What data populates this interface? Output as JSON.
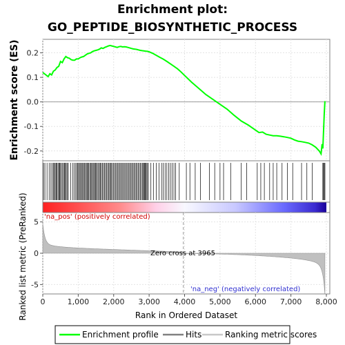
{
  "chart_data": {
    "type": "line",
    "title_line1": "Enrichment plot:",
    "title_line2": "GO_PEPTIDE_BIOSYNTHETIC_PROCESS",
    "top_panel": {
      "ylabel": "Enrichment score (ES)",
      "ylim": [
        -0.24,
        0.255
      ],
      "yticks": [
        -0.2,
        -0.1,
        0.0,
        0.1,
        0.2
      ],
      "ytick_labels": [
        "-0.2",
        "-0.1",
        "0.0",
        "0.1",
        "0.2"
      ],
      "series": [
        {
          "name": "Enrichment profile",
          "color": "#00ff00",
          "x": [
            0,
            150,
            200,
            250,
            300,
            350,
            400,
            450,
            500,
            550,
            600,
            650,
            700,
            750,
            800,
            850,
            900,
            950,
            1000,
            1050,
            1100,
            1150,
            1200,
            1250,
            1300,
            1350,
            1400,
            1450,
            1500,
            1550,
            1600,
            1650,
            1700,
            1750,
            1800,
            1850,
            1900,
            1950,
            2000,
            2050,
            2100,
            2150,
            2200,
            2250,
            2300,
            2350,
            2400,
            2450,
            2500,
            2550,
            2600,
            2650,
            2700,
            2750,
            2800,
            2850,
            2900,
            2950,
            3000,
            3100,
            3200,
            3300,
            3400,
            3500,
            3600,
            3700,
            3800,
            3900,
            4000,
            4200,
            4400,
            4600,
            4800,
            5000,
            5200,
            5400,
            5600,
            5800,
            6000,
            6100,
            6200,
            6300,
            6400,
            6500,
            6600,
            6700,
            6800,
            6900,
            7000,
            7100,
            7200,
            7300,
            7400,
            7500,
            7600,
            7700,
            7800,
            7850,
            7880,
            7900,
            7920,
            7940,
            7960
          ],
          "y": [
            0.12,
            0.103,
            0.115,
            0.11,
            0.125,
            0.13,
            0.14,
            0.145,
            0.165,
            0.16,
            0.175,
            0.185,
            0.18,
            0.178,
            0.172,
            0.17,
            0.17,
            0.175,
            0.175,
            0.18,
            0.183,
            0.185,
            0.19,
            0.195,
            0.198,
            0.2,
            0.205,
            0.208,
            0.21,
            0.212,
            0.215,
            0.22,
            0.218,
            0.222,
            0.225,
            0.228,
            0.23,
            0.228,
            0.226,
            0.224,
            0.222,
            0.225,
            0.226,
            0.224,
            0.225,
            0.224,
            0.222,
            0.22,
            0.218,
            0.216,
            0.215,
            0.214,
            0.212,
            0.21,
            0.209,
            0.208,
            0.207,
            0.206,
            0.204,
            0.198,
            0.19,
            0.182,
            0.174,
            0.165,
            0.155,
            0.145,
            0.135,
            0.122,
            0.108,
            0.08,
            0.055,
            0.03,
            0.01,
            -0.01,
            -0.03,
            -0.055,
            -0.078,
            -0.095,
            -0.115,
            -0.125,
            -0.123,
            -0.132,
            -0.135,
            -0.138,
            -0.138,
            -0.14,
            -0.142,
            -0.145,
            -0.148,
            -0.155,
            -0.16,
            -0.162,
            -0.165,
            -0.168,
            -0.175,
            -0.185,
            -0.2,
            -0.212,
            -0.172,
            -0.19,
            -0.12,
            -0.05,
            0.003
          ]
        }
      ],
      "zero_line": 0.0
    },
    "hits_panel": {
      "hit_positions": [
        20,
        60,
        120,
        180,
        230,
        270,
        300,
        330,
        350,
        380,
        400,
        430,
        460,
        480,
        500,
        530,
        560,
        590,
        610,
        640,
        660,
        690,
        720,
        790,
        850,
        890,
        930,
        960,
        990,
        1010,
        1040,
        1070,
        1090,
        1120,
        1150,
        1170,
        1200,
        1230,
        1250,
        1280,
        1300,
        1330,
        1360,
        1380,
        1410,
        1440,
        1460,
        1490,
        1510,
        1540,
        1570,
        1600,
        1620,
        1650,
        1680,
        1710,
        1740,
        1770,
        1800,
        1830,
        1860,
        1890,
        1910,
        1940,
        1970,
        2000,
        2030,
        2060,
        2090,
        2120,
        2150,
        2180,
        2210,
        2240,
        2270,
        2300,
        2330,
        2360,
        2390,
        2420,
        2450,
        2480,
        2510,
        2540,
        2570,
        2600,
        2630,
        2660,
        2690,
        2720,
        2750,
        2780,
        2810,
        2840,
        2860,
        2880,
        2900,
        2920,
        2950,
        2980,
        3050,
        3120,
        3200,
        3280,
        3350,
        3400,
        3450,
        3500,
        3550,
        3600,
        3650,
        3700,
        3750,
        3850,
        4050,
        4150,
        4300,
        4450,
        4700,
        4850,
        5000,
        5100,
        5300,
        5600,
        5750,
        6050,
        6150,
        6250,
        6400,
        6500,
        6600,
        6750,
        6900,
        7050,
        7300,
        7450,
        7600,
        7900,
        7920,
        7940,
        7960
      ]
    },
    "rank_bar": {
      "pos_label": "'na_pos' (positively correlated)",
      "neg_label": "'na_neg' (negatively correlated)",
      "pos_color": "#ff0000",
      "neg_color": "#0000ff"
    },
    "metric_panel": {
      "ylabel": "Ranked list metric (PreRanked)",
      "ylim": [
        -6.5,
        6.5
      ],
      "yticks": [
        -5,
        0,
        5
      ],
      "ytick_labels": [
        "-5",
        "0",
        "5"
      ],
      "zero_cross_label": "Zero cross at 3965",
      "zero_cross": 3965
    },
    "xaxis": {
      "xlabel": "Rank in Ordered Dataset",
      "xlim": [
        0,
        8000
      ],
      "xticks": [
        0,
        1000,
        2000,
        3000,
        4000,
        5000,
        6000,
        7000,
        8000
      ],
      "xtick_labels": [
        "0",
        "1,000",
        "2,000",
        "3,000",
        "4,000",
        "5,000",
        "6,000",
        "7,000",
        "8,000"
      ],
      "n_ranks": 7960
    },
    "legend": {
      "items": [
        {
          "label": "Enrichment profile",
          "color": "#00ff00"
        },
        {
          "label": "Hits",
          "color": "#000000"
        },
        {
          "label": "Ranking metric scores",
          "color": "#c0c0c0"
        }
      ]
    }
  }
}
